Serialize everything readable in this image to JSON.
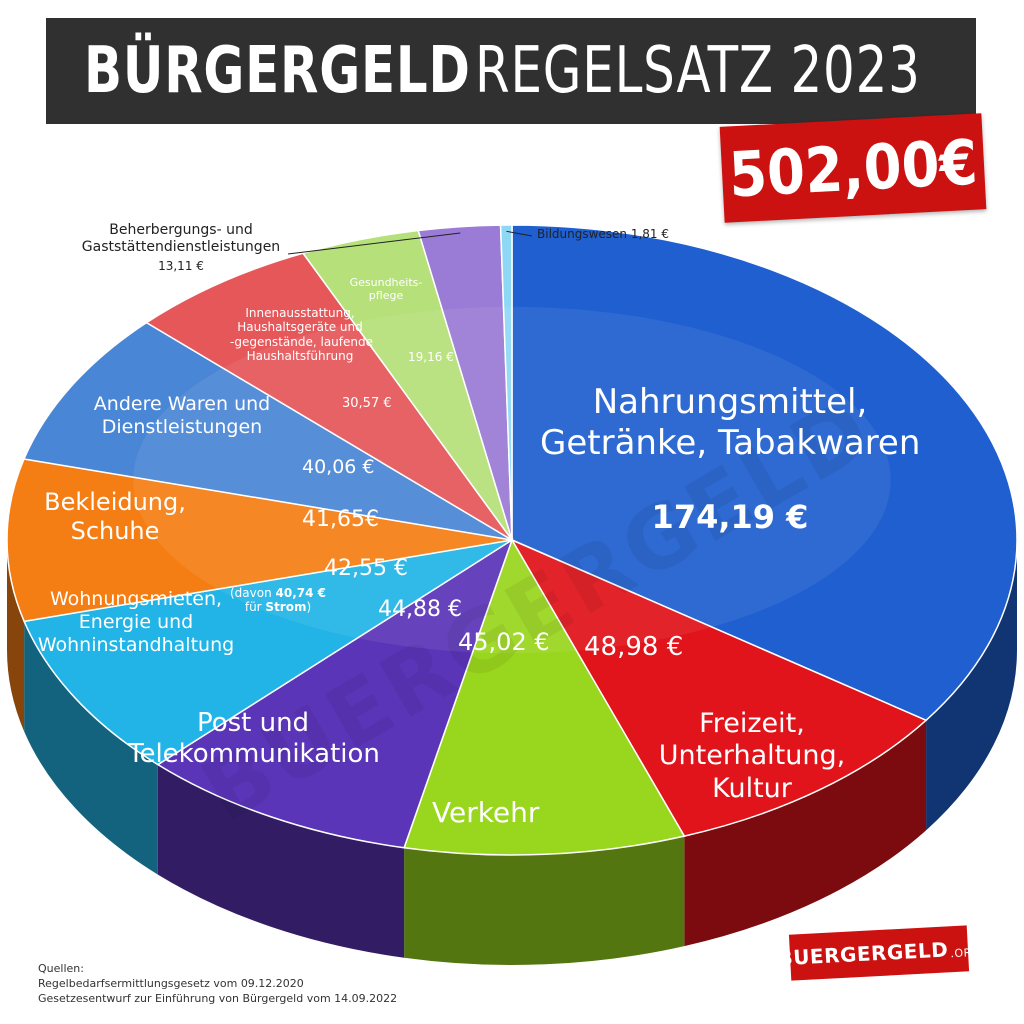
{
  "header": {
    "title_bold": "BÜRGERGELD",
    "title_light": "REGELSATZ 2023",
    "total": "502,00€"
  },
  "chart_data": {
    "type": "pie",
    "title": "BÜRGERGELD REGELSATZ 2023",
    "total": "502,00€",
    "unit": "€",
    "slices": [
      {
        "name": "Nahrungsmittel, Getränke, Tabakwaren",
        "value": 174.19,
        "label": "174,19 €",
        "color": "#1f5fcf"
      },
      {
        "name": "Freizeit, Unterhaltung, Kultur",
        "value": 48.98,
        "label": "48,98 €",
        "color": "#e0141a"
      },
      {
        "name": "Verkehr",
        "value": 45.02,
        "label": "45,02 €",
        "color": "#99d61e"
      },
      {
        "name": "Post und Telekommunikation",
        "value": 44.88,
        "label": "44,88 €",
        "color": "#5b35b8"
      },
      {
        "name": "Wohnungsmieten, Energie und Wohninstandhaltung",
        "value": 42.55,
        "label": "42,55 €",
        "color": "#22b4e6"
      },
      {
        "name": "Bekleidung, Schuhe",
        "value": 41.65,
        "label": "41,65€",
        "color": "#f57e14"
      },
      {
        "name": "Andere Waren und Dienstleistungen",
        "value": 40.06,
        "label": "40,06 €",
        "color": "#4a86d6"
      },
      {
        "name": "Innenausstattung, Haushaltsgeräte und -gegenstände, laufende Haushaltsführung",
        "value": 30.57,
        "label": "30,57 €",
        "color": "#e6575a"
      },
      {
        "name": "Gesundheitspflege",
        "value": 19.16,
        "label": "19,16 €",
        "color": "#b5e07a"
      },
      {
        "name": "Beherbergungs- und Gaststättendienstleistungen",
        "value": 13.11,
        "label": "13,11 €",
        "color": "#9a7bd6"
      },
      {
        "name": "Bildungswesen",
        "value": 1.81,
        "label": "1,81 €",
        "color": "#8fd8f5"
      }
    ]
  },
  "labels": {
    "nahrung": {
      "lines": [
        "Nahrungsmittel,",
        "Getränke, Tabakwaren"
      ],
      "value": "174,19 €"
    },
    "freizeit": {
      "lines": [
        "Freizeit,",
        "Unterhaltung,",
        "Kultur"
      ],
      "value": "48,98 €"
    },
    "verkehr": {
      "lines": [
        "Verkehr"
      ],
      "value": "45,02 €"
    },
    "post": {
      "lines": [
        "Post und",
        "Telekommunikation"
      ],
      "value": "44,88 €"
    },
    "wohnung": {
      "lines": [
        "Wohnungsmieten,",
        "Energie und",
        "Wohninstandhaltung"
      ],
      "value": "42,55 €",
      "note_prefix": "(davon ",
      "note_bold": "40,74 €",
      "note_line2_prefix": "für ",
      "note_line2_bold": "Strom",
      "note_suffix": ")"
    },
    "bekleidung": {
      "lines": [
        "Bekleidung,",
        "Schuhe"
      ],
      "value": "41,65€"
    },
    "andere": {
      "lines": [
        "Andere Waren und",
        "Dienstleistungen"
      ],
      "value": "40,06 €"
    },
    "innen": {
      "lines": [
        "Innenausstattung,",
        "Haushaltsgeräte und",
        "-gegenstände, laufende",
        "Haushaltsführung"
      ],
      "value": "30,57 €"
    },
    "gesund": {
      "lines": [
        "Gesundheits-",
        "pflege"
      ],
      "value": "19,16 €"
    },
    "beherbergung": {
      "lines": [
        "Beherbergungs- und",
        "Gaststättendienstleistungen"
      ],
      "value": "13,11 €"
    },
    "bildung": {
      "text": "Bildungswesen 1,81 €"
    }
  },
  "sources": {
    "heading": "Quellen:",
    "line1": "Regelbedarfsermittlungsgesetz vom 09.12.2020",
    "line2": "Gesetzesentwurf zur Einführung von Bürgergeld vom 14.09.2022"
  },
  "logo": {
    "main": "BUERGERGELD",
    "suffix": ".ORG"
  },
  "watermark": "BUERGERGELD"
}
